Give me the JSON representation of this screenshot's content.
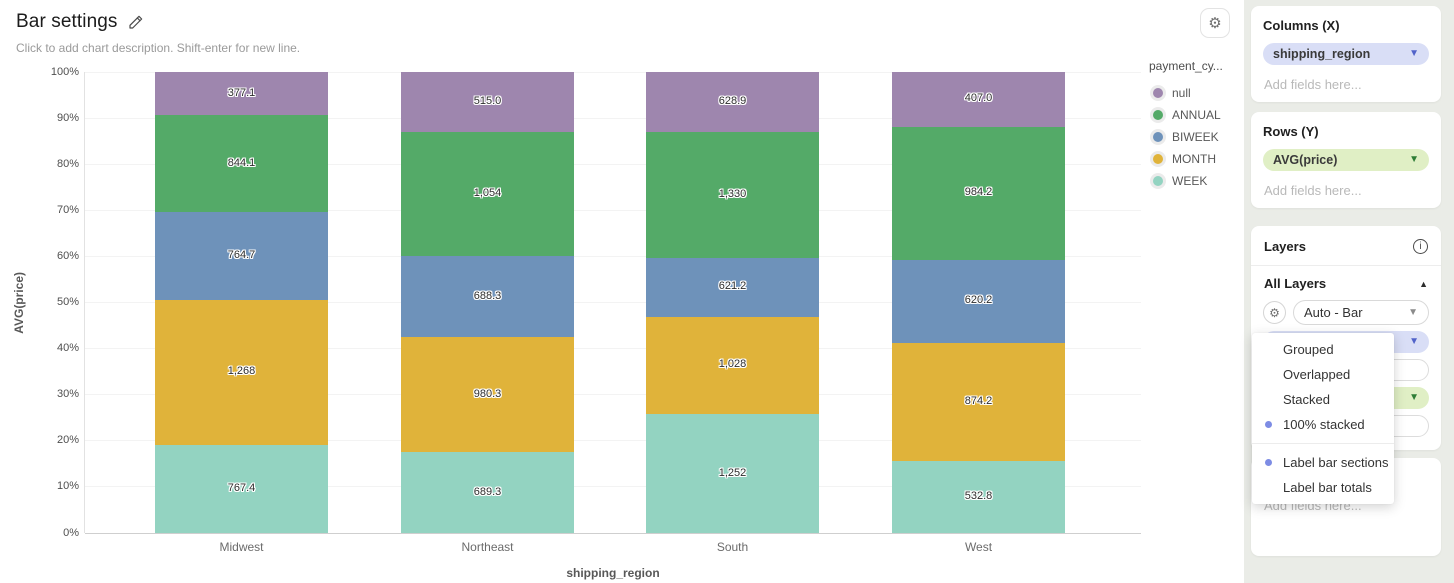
{
  "header": {
    "title": "Bar settings",
    "subtitle": "Click to add chart description. Shift-enter for new line."
  },
  "chart_data": {
    "type": "bar",
    "variant": "100% stacked, labeled bar sections",
    "xlabel": "shipping_region",
    "ylabel": "AVG(price)",
    "categories": [
      "Midwest",
      "Northeast",
      "South",
      "West"
    ],
    "series": [
      {
        "name": "null",
        "color": "#9e86ae",
        "values": [
          377.1,
          515.0,
          628.9,
          407.0
        ],
        "labels": [
          "377.1",
          "515.0",
          "628.9",
          "407.0"
        ]
      },
      {
        "name": "ANNUAL",
        "color": "#54aa68",
        "values": [
          844.1,
          1054,
          1330,
          984.2
        ],
        "labels": [
          "844.1",
          "1,054",
          "1,330",
          "984.2"
        ]
      },
      {
        "name": "BIWEEK",
        "color": "#6e92ba",
        "values": [
          764.7,
          688.3,
          621.2,
          620.2
        ],
        "labels": [
          "764.7",
          "688.3",
          "621.2",
          "620.2"
        ]
      },
      {
        "name": "MONTH",
        "color": "#e0b33a",
        "values": [
          1268,
          980.3,
          1028,
          874.2
        ],
        "labels": [
          "1,268",
          "980.3",
          "1,028",
          "874.2"
        ]
      },
      {
        "name": "WEEK",
        "color": "#93d3c1",
        "values": [
          767.4,
          689.3,
          1252,
          532.8
        ],
        "labels": [
          "767.4",
          "689.3",
          "1,252",
          "532.8"
        ]
      }
    ],
    "y_ticks": [
      "0%",
      "10%",
      "20%",
      "30%",
      "40%",
      "50%",
      "60%",
      "70%",
      "80%",
      "90%",
      "100%"
    ],
    "ylim": [
      0,
      100
    ],
    "grid": true,
    "legend": {
      "title": "payment_cy...",
      "position": "right"
    }
  },
  "sidebar": {
    "columns": {
      "title": "Columns (X)",
      "field": "shipping_region",
      "placeholder": "Add fields here..."
    },
    "rows": {
      "title": "Rows (Y)",
      "field": "AVG(price)",
      "placeholder": "Add fields here..."
    },
    "layers": {
      "title": "Layers",
      "all_layers_label": "All Layers",
      "type_select_value": "Auto - Bar"
    },
    "bottom_panel": {
      "placeholder": "Add fields here..."
    }
  },
  "layers_menu": {
    "dot_color": "#7d8ce4",
    "items": [
      {
        "label": "Grouped",
        "selected": false
      },
      {
        "label": "Overlapped",
        "selected": false
      },
      {
        "label": "Stacked",
        "selected": false
      },
      {
        "label": "100% stacked",
        "selected": true
      }
    ],
    "toggles": [
      {
        "label": "Label bar sections",
        "selected": true
      },
      {
        "label": "Label bar totals",
        "selected": false
      }
    ]
  }
}
